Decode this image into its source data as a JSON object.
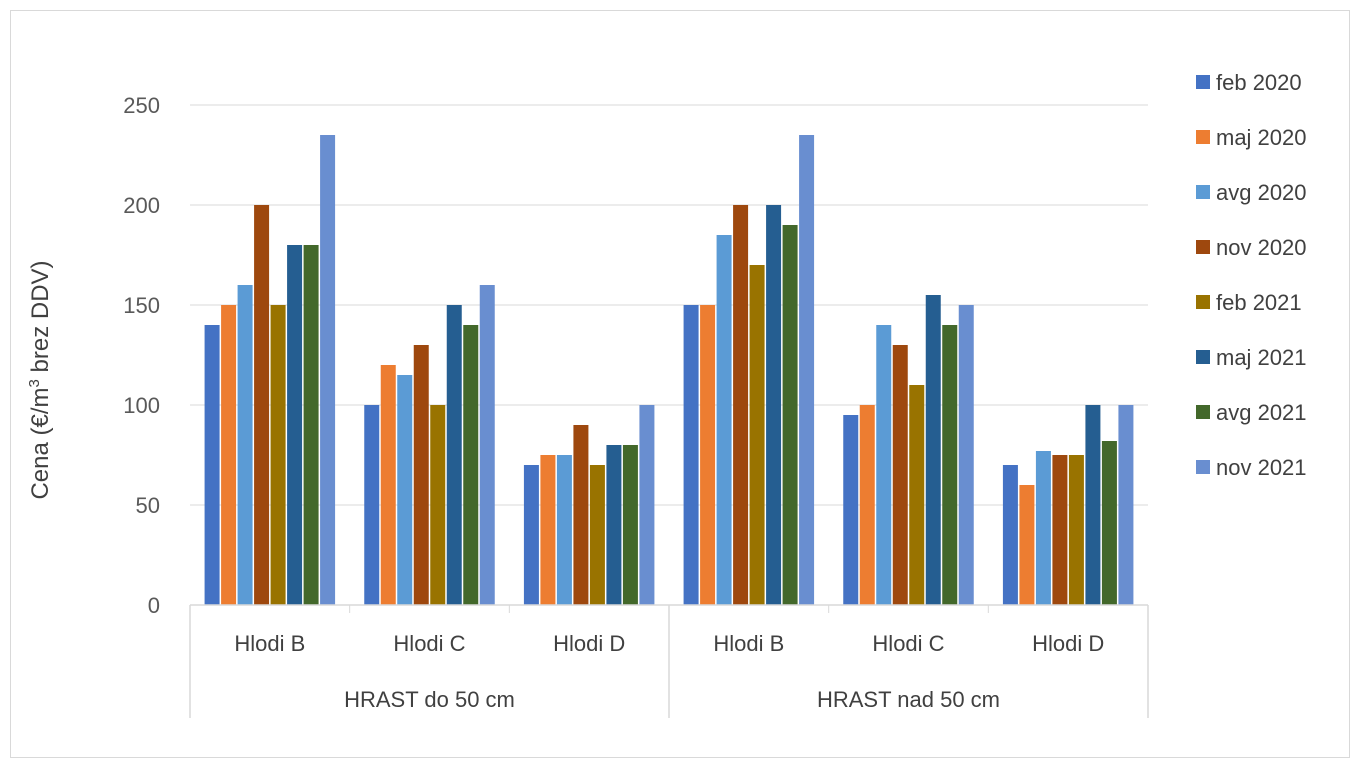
{
  "chart_data": {
    "type": "bar",
    "title": "",
    "ylabel": "Cena (€/m³ brez DDV)",
    "ylabel_parts": {
      "before": "Cena (€/m",
      "superscript": "3",
      "after": " brez DDV)"
    },
    "ylim": [
      0,
      250
    ],
    "yticks": [
      0,
      50,
      100,
      150,
      200,
      250
    ],
    "grid": true,
    "legend_position": "right",
    "groups": [
      {
        "label": "HRAST do 50 cm",
        "categories": [
          "Hlodi B",
          "Hlodi C",
          "Hlodi D"
        ]
      },
      {
        "label": "HRAST nad 50 cm",
        "categories": [
          "Hlodi B",
          "Hlodi C",
          "Hlodi D"
        ]
      }
    ],
    "categories": [
      "Hlodi B",
      "Hlodi C",
      "Hlodi D",
      "Hlodi B",
      "Hlodi C",
      "Hlodi D"
    ],
    "series": [
      {
        "name": "feb 2020",
        "color": "#4472C4",
        "values": [
          140,
          100,
          70,
          150,
          95,
          70
        ]
      },
      {
        "name": "maj 2020",
        "color": "#ED7D31",
        "values": [
          150,
          120,
          75,
          150,
          100,
          60
        ]
      },
      {
        "name": "avg 2020",
        "color": "#5B9BD5",
        "values": [
          160,
          115,
          75,
          185,
          140,
          77
        ]
      },
      {
        "name": "nov 2020",
        "color": "#9E480E",
        "values": [
          200,
          130,
          90,
          200,
          130,
          75
        ]
      },
      {
        "name": "feb 2021",
        "color": "#997300",
        "values": [
          150,
          100,
          70,
          170,
          110,
          75
        ]
      },
      {
        "name": "maj 2021",
        "color": "#255E91",
        "values": [
          180,
          150,
          80,
          200,
          155,
          100
        ]
      },
      {
        "name": "avg 2021",
        "color": "#43682B",
        "values": [
          180,
          140,
          80,
          190,
          140,
          82
        ]
      },
      {
        "name": "nov 2021",
        "color": "#698ED0",
        "values": [
          235,
          160,
          100,
          235,
          150,
          100
        ]
      }
    ]
  }
}
